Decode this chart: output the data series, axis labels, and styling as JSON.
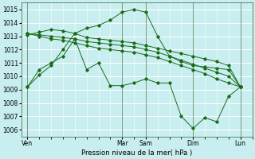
{
  "xlabel": "Pression niveau de la mer( hPa )",
  "bg_color": "#c8eef0",
  "grid_color": "#ffffff",
  "line_color": "#1a6b1a",
  "ylim": [
    1005.5,
    1015.5
  ],
  "yticks": [
    1006,
    1007,
    1008,
    1009,
    1010,
    1011,
    1012,
    1013,
    1014,
    1015
  ],
  "day_labels": [
    "Ven",
    "Mar",
    "Sam",
    "Dim",
    "Lun"
  ],
  "day_x": [
    0,
    48,
    60,
    84,
    108
  ],
  "xlim": [
    -3,
    114
  ],
  "series": [
    {
      "x": [
        0,
        6,
        12,
        18,
        24,
        30,
        36,
        42,
        48,
        54,
        60,
        66,
        72,
        78,
        84,
        90,
        96,
        102,
        108
      ],
      "y": [
        1009.2,
        1010.1,
        1010.8,
        1012.0,
        1013.2,
        1013.6,
        1013.8,
        1014.2,
        1014.8,
        1015.0,
        1014.8,
        1013.0,
        1011.5,
        1011.1,
        1010.8,
        1010.7,
        1010.6,
        1010.5,
        1009.2
      ]
    },
    {
      "x": [
        0,
        6,
        12,
        18,
        24,
        30,
        36,
        42,
        48,
        54,
        60,
        66,
        72,
        78,
        84,
        90,
        96,
        102,
        108
      ],
      "y": [
        1013.1,
        1013.3,
        1013.5,
        1013.4,
        1013.2,
        1012.9,
        1012.8,
        1012.7,
        1012.6,
        1012.5,
        1012.3,
        1012.1,
        1011.9,
        1011.7,
        1011.5,
        1011.3,
        1011.1,
        1010.8,
        1009.2
      ]
    },
    {
      "x": [
        0,
        6,
        12,
        18,
        24,
        30,
        36,
        42,
        48,
        54,
        60,
        66,
        72,
        78,
        84,
        90,
        96,
        102,
        108
      ],
      "y": [
        1013.2,
        1013.1,
        1013.0,
        1012.9,
        1012.8,
        1012.6,
        1012.5,
        1012.4,
        1012.3,
        1012.2,
        1012.0,
        1011.8,
        1011.5,
        1011.2,
        1010.9,
        1010.6,
        1010.3,
        1010.0,
        1009.2
      ]
    },
    {
      "x": [
        0,
        6,
        12,
        18,
        24,
        30,
        36,
        42,
        48,
        54,
        60,
        66,
        72,
        78,
        84,
        90,
        96,
        102,
        108
      ],
      "y": [
        1013.2,
        1013.0,
        1012.8,
        1012.7,
        1012.5,
        1012.3,
        1012.1,
        1012.0,
        1011.9,
        1011.8,
        1011.6,
        1011.4,
        1011.1,
        1010.8,
        1010.5,
        1010.2,
        1009.8,
        1009.5,
        1009.2
      ]
    },
    {
      "x": [
        0,
        6,
        12,
        18,
        24,
        30,
        36,
        42,
        48,
        54,
        60,
        66,
        72,
        78,
        84,
        90,
        96,
        102,
        108
      ],
      "y": [
        1009.2,
        1010.5,
        1011.0,
        1011.5,
        1012.8,
        1010.5,
        1011.0,
        1009.3,
        1009.3,
        1009.5,
        1009.8,
        1009.5,
        1009.5,
        1007.0,
        1006.1,
        1006.9,
        1006.6,
        1008.5,
        1009.2
      ]
    }
  ]
}
